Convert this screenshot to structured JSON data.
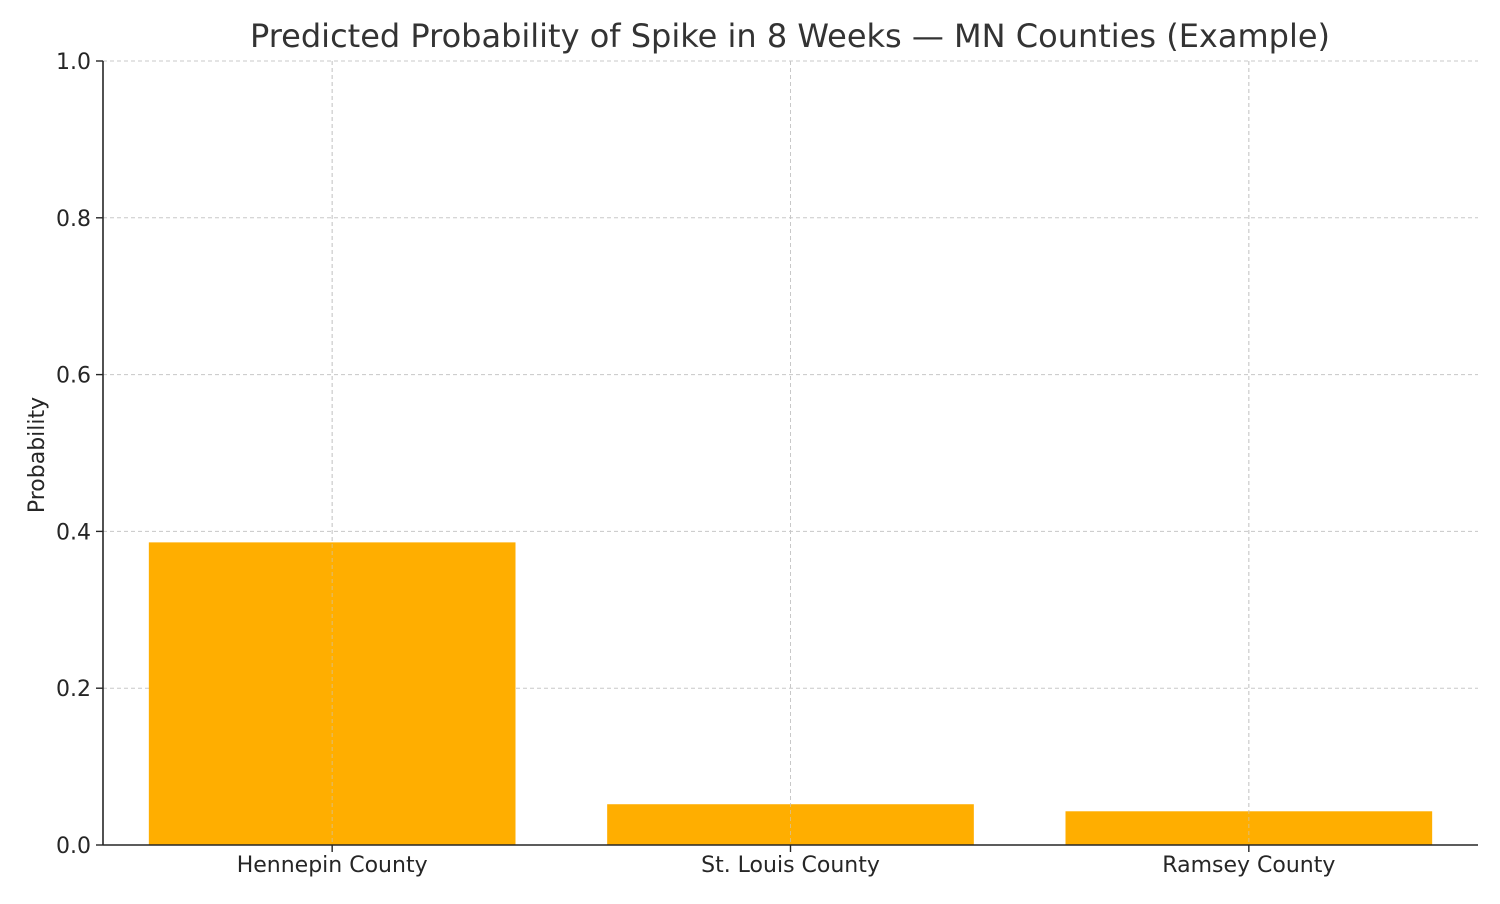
{
  "chart_data": {
    "type": "bar",
    "title": "Predicted Probability of Spike in 8 Weeks — MN Counties (Example)",
    "xlabel": "",
    "ylabel": "Probability",
    "categories": [
      "Hennepin County",
      "St. Louis County",
      "Ramsey County"
    ],
    "values": [
      0.386,
      0.052,
      0.043
    ],
    "ylim": [
      0,
      1.0
    ],
    "yticks": [
      "0.0",
      "0.2",
      "0.4",
      "0.6",
      "0.8",
      "1.0"
    ],
    "grid": true,
    "bar_color": "#FFAE00",
    "legend": null
  }
}
